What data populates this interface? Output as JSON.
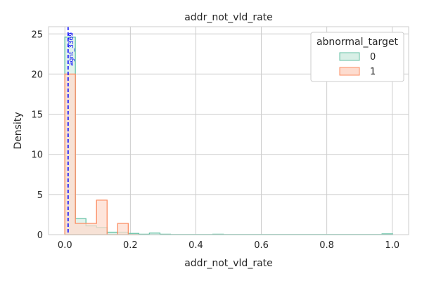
{
  "chart_data": {
    "type": "histogram",
    "title": "addr_not_vld_rate",
    "xlabel": "addr_not_vld_rate",
    "ylabel": "Density",
    "xlim": [
      -0.05,
      1.05
    ],
    "ylim": [
      0,
      25.9
    ],
    "xticks": [
      0.0,
      0.2,
      0.4,
      0.6,
      0.8,
      1.0
    ],
    "xtick_labels": [
      "0.0",
      "0.2",
      "0.4",
      "0.6",
      "0.8",
      "1.0"
    ],
    "yticks": [
      0,
      5,
      10,
      15,
      20,
      25
    ],
    "ytick_labels": [
      "0",
      "5",
      "10",
      "15",
      "20",
      "25"
    ],
    "grid": true,
    "legend": {
      "title": "abnormal_target",
      "placement": "top-right"
    },
    "bin_width": 0.0323,
    "bin_edges_start": -0.0003,
    "series": [
      {
        "name": "0",
        "color": "#66c2a5",
        "fill": "#d8efe6",
        "values": [
          24.6,
          2.0,
          1.1,
          0.9,
          0.3,
          0.3,
          0.15,
          0.05,
          0.2,
          0.05,
          0.02,
          0.02,
          0.02,
          0.02,
          0.05,
          0.02,
          0.02,
          0.02,
          0.02,
          0.02,
          0.02,
          0.02,
          0.02,
          0.02,
          0.02,
          0.02,
          0.02,
          0.02,
          0.02,
          0.02,
          0.1
        ]
      },
      {
        "name": "1",
        "color": "#fc8d62",
        "fill": "#fddccf",
        "values": [
          20.0,
          1.4,
          1.4,
          4.3,
          0.0,
          1.4,
          0.0
        ]
      }
    ],
    "vline": {
      "x": 0.0098,
      "color": "#0000ff",
      "label": "agnt_3369"
    }
  }
}
